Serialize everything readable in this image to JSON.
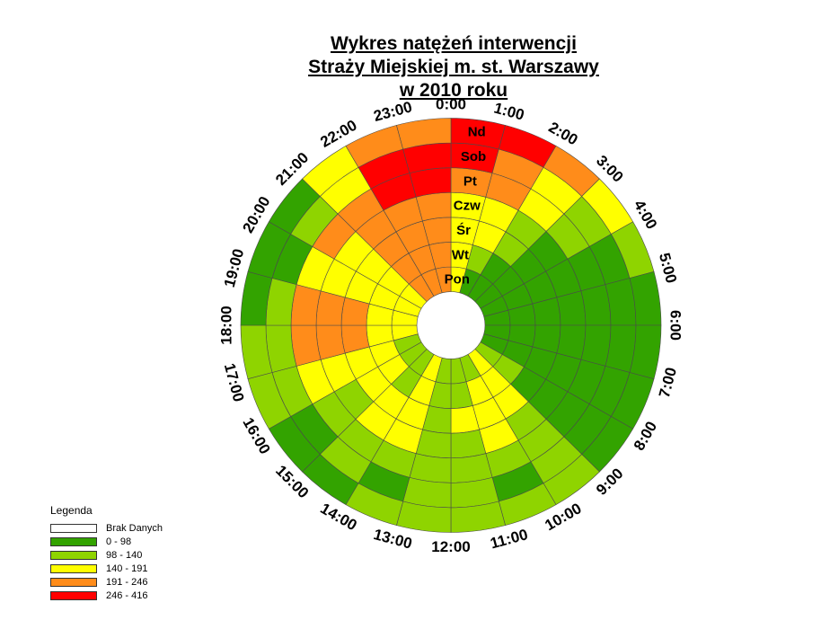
{
  "chart_data": {
    "type": "heatmap",
    "title_lines": [
      "Wykres natężeń interwencji",
      "Straży Miejskiej m. st. Warszawy",
      "w 2010 roku"
    ],
    "hours": [
      "0:00",
      "1:00",
      "2:00",
      "3:00",
      "4:00",
      "5:00",
      "6:00",
      "7:00",
      "8:00",
      "9:00",
      "10:00",
      "11:00",
      "12:00",
      "13:00",
      "14:00",
      "15:00",
      "16:00",
      "17:00",
      "18:00",
      "19:00",
      "20:00",
      "21:00",
      "22:00",
      "23:00"
    ],
    "days": [
      "Pon",
      "Wt",
      "Śr",
      "Czw",
      "Pt",
      "Sob",
      "Nd"
    ],
    "classes": [
      {
        "label": "Brak Danych",
        "color": "#ffffff"
      },
      {
        "label": "0 - 98",
        "color": "#33a300"
      },
      {
        "label": "98 - 140",
        "color": "#8fd400"
      },
      {
        "label": "140 - 191",
        "color": "#ffff00"
      },
      {
        "label": "191 - 246",
        "color": "#ff8c1a"
      },
      {
        "label": "246 - 416",
        "color": "#ff0000"
      }
    ],
    "class_matrix": [
      [
        3,
        3,
        3,
        3,
        4,
        5,
        5
      ],
      [
        1,
        2,
        3,
        3,
        4,
        4,
        5
      ],
      [
        1,
        1,
        2,
        2,
        3,
        3,
        4
      ],
      [
        1,
        1,
        1,
        1,
        2,
        2,
        3
      ],
      [
        1,
        1,
        1,
        1,
        1,
        1,
        2
      ],
      [
        1,
        1,
        1,
        1,
        1,
        1,
        1
      ],
      [
        1,
        1,
        1,
        1,
        1,
        1,
        1
      ],
      [
        1,
        1,
        1,
        1,
        1,
        1,
        1
      ],
      [
        2,
        2,
        1,
        1,
        1,
        1,
        1
      ],
      [
        3,
        3,
        3,
        2,
        2,
        2,
        2
      ],
      [
        2,
        3,
        3,
        3,
        2,
        1,
        2
      ],
      [
        2,
        2,
        3,
        2,
        2,
        2,
        2
      ],
      [
        2,
        2,
        2,
        2,
        2,
        2,
        2
      ],
      [
        3,
        3,
        3,
        3,
        2,
        1,
        2
      ],
      [
        2,
        2,
        3,
        3,
        2,
        2,
        1
      ],
      [
        2,
        3,
        3,
        2,
        2,
        1,
        1
      ],
      [
        2,
        3,
        3,
        3,
        3,
        2,
        2
      ],
      [
        3,
        3,
        4,
        4,
        4,
        2,
        2
      ],
      [
        3,
        3,
        4,
        4,
        4,
        2,
        1
      ],
      [
        3,
        3,
        3,
        3,
        3,
        1,
        1
      ],
      [
        3,
        3,
        3,
        3,
        4,
        2,
        1
      ],
      [
        4,
        4,
        4,
        4,
        4,
        3,
        3
      ],
      [
        4,
        4,
        4,
        4,
        5,
        5,
        4
      ],
      [
        4,
        4,
        4,
        4,
        5,
        5,
        4
      ]
    ]
  },
  "legend": {
    "title": "Legenda"
  }
}
